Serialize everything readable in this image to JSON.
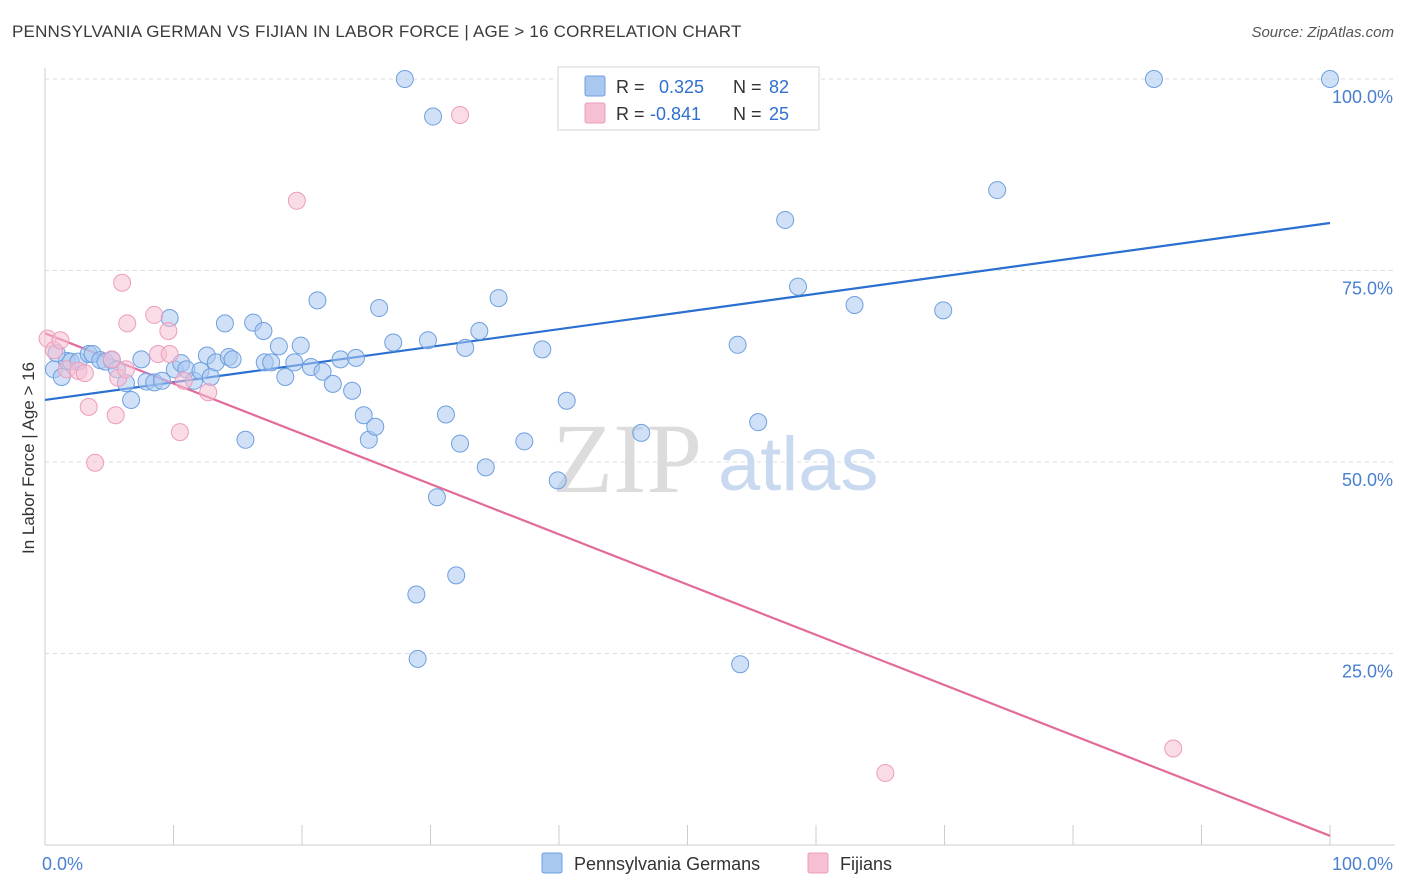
{
  "title": "PENNSYLVANIA GERMAN VS FIJIAN IN LABOR FORCE | AGE > 16 CORRELATION CHART",
  "source": "Source: ZipAtlas.com",
  "watermark": {
    "zip": "ZIP",
    "atlas": "atlas"
  },
  "colors": {
    "blue": "#2a6fd1",
    "blue_fill": "#a9c8f0",
    "pink": "#e26b9b",
    "pink_fill": "#f6bfd3",
    "tick_label": "#4a7fd0",
    "grid": "#dddddd"
  },
  "stats": [
    {
      "r_label": "R =",
      "r_value": "0.325",
      "n_label": "N =",
      "n_value": "82"
    },
    {
      "r_label": "R =",
      "r_value": "-0.841",
      "n_label": "N =",
      "n_value": "25"
    }
  ],
  "chart_data": {
    "type": "scatter",
    "title": "PENNSYLVANIA GERMAN VS FIJIAN IN LABOR FORCE | AGE > 16 CORRELATION CHART",
    "xlabel": "",
    "ylabel": "In Labor Force | Age > 16",
    "xlim": [
      0,
      100
    ],
    "ylim": [
      0,
      100
    ],
    "x_tick_labels": [
      {
        "value": 0,
        "label": "0.0%"
      },
      {
        "value": 100,
        "label": "100.0%"
      }
    ],
    "y_tick_labels": [
      {
        "value": 25,
        "label": "25.0%"
      },
      {
        "value": 50,
        "label": "50.0%"
      },
      {
        "value": 75,
        "label": "75.0%"
      },
      {
        "value": 100,
        "label": "100.0%"
      }
    ],
    "grid": true,
    "legend_position": "bottom",
    "series": [
      {
        "name": "Pennsylvania Germans",
        "color": "#2a6fd1",
        "trend": [
          [
            0,
            58.1
          ],
          [
            100,
            81.2
          ]
        ],
        "points": [
          [
            0.7,
            62.1
          ],
          [
            1.3,
            61.1
          ],
          [
            1.7,
            63.2
          ],
          [
            2.0,
            63.1
          ],
          [
            2.6,
            63.1
          ],
          [
            3.4,
            64.1
          ],
          [
            3.7,
            64.1
          ],
          [
            4.3,
            63.3
          ],
          [
            4.7,
            63.1
          ],
          [
            5.2,
            63.3
          ],
          [
            5.6,
            62.1
          ],
          [
            6.3,
            60.3
          ],
          [
            6.7,
            58.1
          ],
          [
            7.5,
            63.4
          ],
          [
            7.9,
            60.5
          ],
          [
            8.5,
            60.4
          ],
          [
            9.1,
            60.6
          ],
          [
            9.7,
            68.8
          ],
          [
            10.1,
            62.1
          ],
          [
            10.6,
            62.9
          ],
          [
            11.0,
            62.1
          ],
          [
            11.6,
            60.6
          ],
          [
            12.1,
            61.9
          ],
          [
            12.6,
            63.9
          ],
          [
            12.9,
            61.1
          ],
          [
            13.3,
            63.0
          ],
          [
            14.0,
            68.1
          ],
          [
            14.3,
            63.7
          ],
          [
            14.6,
            63.4
          ],
          [
            15.6,
            52.9
          ],
          [
            16.2,
            68.2
          ],
          [
            17.0,
            67.1
          ],
          [
            17.1,
            63.0
          ],
          [
            17.6,
            63.0
          ],
          [
            18.2,
            65.1
          ],
          [
            18.7,
            61.1
          ],
          [
            19.4,
            63.0
          ],
          [
            19.9,
            65.2
          ],
          [
            20.7,
            62.4
          ],
          [
            21.2,
            71.1
          ],
          [
            21.6,
            61.8
          ],
          [
            22.4,
            60.2
          ],
          [
            23.0,
            63.4
          ],
          [
            23.9,
            59.3
          ],
          [
            24.2,
            63.6
          ],
          [
            24.8,
            56.1
          ],
          [
            25.2,
            52.9
          ],
          [
            25.7,
            54.6
          ],
          [
            26.0,
            70.1
          ],
          [
            27.1,
            65.6
          ],
          [
            28.0,
            100.0
          ],
          [
            28.9,
            32.7
          ],
          [
            29.0,
            24.3
          ],
          [
            29.8,
            65.9
          ],
          [
            30.2,
            95.1
          ],
          [
            30.5,
            45.4
          ],
          [
            31.2,
            56.2
          ],
          [
            32.0,
            35.2
          ],
          [
            32.3,
            52.4
          ],
          [
            32.7,
            64.9
          ],
          [
            33.8,
            67.1
          ],
          [
            34.3,
            49.3
          ],
          [
            35.3,
            71.4
          ],
          [
            37.3,
            52.7
          ],
          [
            38.7,
            64.7
          ],
          [
            39.9,
            47.6
          ],
          [
            40.6,
            58.0
          ],
          [
            43.4,
            100.0
          ],
          [
            46.4,
            53.8
          ],
          [
            47.8,
            95.3
          ],
          [
            50.2,
            100.0
          ],
          [
            53.9,
            65.3
          ],
          [
            54.1,
            23.6
          ],
          [
            55.5,
            55.2
          ],
          [
            57.6,
            81.6
          ],
          [
            58.6,
            72.9
          ],
          [
            63.0,
            70.5
          ],
          [
            69.9,
            69.8
          ],
          [
            74.1,
            85.5
          ],
          [
            86.3,
            100.0
          ],
          [
            100.0,
            100.0
          ],
          [
            0.9,
            64.2
          ]
        ]
      },
      {
        "name": "Fijians",
        "color": "#e26b9b",
        "trend": [
          [
            0,
            66.8
          ],
          [
            100,
            1.2
          ]
        ],
        "points": [
          [
            0.2,
            66.1
          ],
          [
            0.7,
            64.6
          ],
          [
            1.2,
            65.9
          ],
          [
            1.7,
            62.1
          ],
          [
            2.6,
            61.9
          ],
          [
            3.1,
            61.6
          ],
          [
            3.4,
            57.2
          ],
          [
            3.9,
            49.9
          ],
          [
            5.2,
            63.4
          ],
          [
            5.5,
            56.1
          ],
          [
            5.7,
            61.0
          ],
          [
            6.3,
            62.1
          ],
          [
            6.0,
            73.4
          ],
          [
            6.4,
            68.1
          ],
          [
            8.5,
            69.2
          ],
          [
            8.8,
            64.1
          ],
          [
            9.6,
            67.1
          ],
          [
            9.7,
            64.1
          ],
          [
            10.5,
            53.9
          ],
          [
            10.8,
            60.6
          ],
          [
            12.7,
            59.1
          ],
          [
            19.6,
            84.1
          ],
          [
            32.3,
            95.3
          ],
          [
            65.4,
            9.4
          ],
          [
            87.8,
            12.6
          ]
        ]
      }
    ]
  }
}
